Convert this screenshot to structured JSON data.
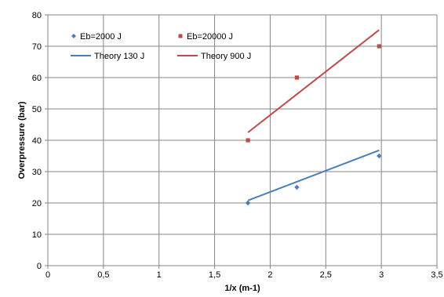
{
  "chart_data": {
    "type": "scatter",
    "title": "",
    "xlabel": "1/x (m-1)",
    "ylabel": "Overpressure (bar)",
    "xlim": [
      0,
      3.5
    ],
    "ylim": [
      0,
      80
    ],
    "x_ticks": [
      "0",
      "0,5",
      "1",
      "1,5",
      "2",
      "2,5",
      "3",
      "3,5"
    ],
    "x_tick_values": [
      0,
      0.5,
      1,
      1.5,
      2,
      2.5,
      3,
      3.5
    ],
    "y_ticks": [
      "0",
      "10",
      "20",
      "30",
      "40",
      "50",
      "60",
      "70",
      "80"
    ],
    "y_tick_values": [
      0,
      10,
      20,
      30,
      40,
      50,
      60,
      70,
      80
    ],
    "grid": true,
    "legend_position": "top-left",
    "series": [
      {
        "name": "Eb=2000 J",
        "kind": "scatter",
        "marker": "diamond",
        "color": "#4a7ebb",
        "x": [
          1.8,
          2.24,
          2.98
        ],
        "y": [
          20,
          25,
          35
        ]
      },
      {
        "name": "Eb=20000 J",
        "kind": "scatter",
        "marker": "square",
        "color": "#be4b48",
        "x": [
          1.8,
          2.24,
          2.98
        ],
        "y": [
          40,
          60,
          70
        ]
      },
      {
        "name": "Theory 130 J",
        "kind": "line",
        "color": "#4a7ebb",
        "x": [
          1.8,
          2.98
        ],
        "y": [
          20.8,
          36.8
        ]
      },
      {
        "name": "Theory 900 J",
        "kind": "line",
        "color": "#be4b48",
        "x": [
          1.8,
          2.98
        ],
        "y": [
          42.5,
          75.2
        ]
      }
    ]
  }
}
